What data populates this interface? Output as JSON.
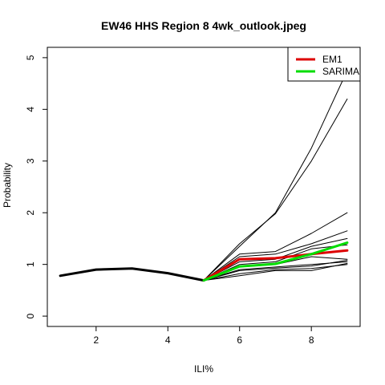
{
  "chart_data": {
    "type": "line",
    "title": "EW46 HHS Region 8 4wk_outlook.jpeg",
    "xlabel": "ILI%",
    "ylabel": "Probability",
    "xlim": [
      0.64,
      9.36
    ],
    "ylim": [
      -0.2,
      5.2
    ],
    "xticks": [
      2,
      4,
      6,
      8
    ],
    "yticks": [
      0,
      1,
      2,
      3,
      4,
      5
    ],
    "grid": false,
    "legend_position": "top-right",
    "history": {
      "x": [
        1,
        2,
        3,
        4,
        5
      ],
      "y": [
        0.78,
        0.9,
        0.92,
        0.83,
        0.69
      ]
    },
    "forecast_x": [
      5,
      6,
      7,
      8,
      9
    ],
    "ensemble_paths": [
      [
        0.69,
        1.35,
        2.0,
        3.25,
        4.75
      ],
      [
        0.69,
        1.4,
        1.98,
        3.0,
        4.2
      ],
      [
        0.69,
        1.2,
        1.25,
        1.6,
        2.0
      ],
      [
        0.69,
        1.15,
        1.2,
        1.4,
        1.65
      ],
      [
        0.69,
        1.05,
        1.1,
        1.35,
        1.5
      ],
      [
        0.69,
        1.0,
        1.05,
        1.3,
        1.38
      ],
      [
        0.69,
        0.95,
        1.0,
        1.15,
        1.1
      ],
      [
        0.69,
        0.9,
        0.95,
        1.0,
        1.05
      ],
      [
        0.69,
        0.88,
        0.93,
        0.97,
        1.08
      ],
      [
        0.69,
        0.82,
        0.9,
        0.92,
        1.0
      ],
      [
        0.69,
        0.78,
        0.88,
        0.88,
        1.02
      ]
    ],
    "series": [
      {
        "name": "EM1",
        "color": "#dd0000",
        "x": [
          5,
          6,
          7,
          8,
          9
        ],
        "values": [
          0.69,
          1.1,
          1.12,
          1.2,
          1.27
        ]
      },
      {
        "name": "SARIMA",
        "color": "#00dd00",
        "x": [
          5,
          6,
          7,
          8,
          9
        ],
        "values": [
          0.69,
          0.96,
          1.01,
          1.2,
          1.42
        ]
      }
    ]
  }
}
